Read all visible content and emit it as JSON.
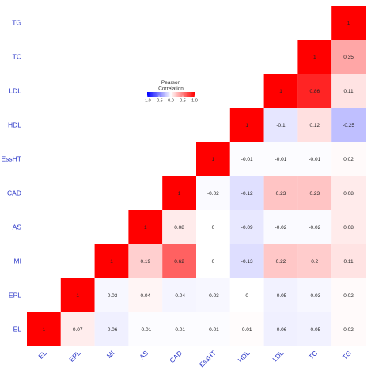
{
  "chart_data": {
    "type": "heatmap",
    "title": "",
    "xlabel": "",
    "ylabel": "",
    "x_categories": [
      "EL",
      "EPL",
      "MI",
      "AS",
      "CAD",
      "EssHT",
      "HDL",
      "LDL",
      "TC",
      "TG"
    ],
    "y_categories_bottom_to_top": [
      "EL",
      "EPL",
      "MI",
      "AS",
      "CAD",
      "EssHT",
      "HDL",
      "LDL",
      "TC",
      "TG"
    ],
    "cells": [
      {
        "row": "EL",
        "col": "EL",
        "value": 1,
        "label": "1"
      },
      {
        "row": "EL",
        "col": "EPL",
        "value": 0.07,
        "label": "0.07"
      },
      {
        "row": "EL",
        "col": "MI",
        "value": -0.06,
        "label": "-0.06"
      },
      {
        "row": "EL",
        "col": "AS",
        "value": -0.01,
        "label": "-0.01"
      },
      {
        "row": "EL",
        "col": "CAD",
        "value": -0.01,
        "label": "-0.01"
      },
      {
        "row": "EL",
        "col": "EssHT",
        "value": -0.01,
        "label": "-0.01"
      },
      {
        "row": "EL",
        "col": "HDL",
        "value": 0.01,
        "label": "0.01"
      },
      {
        "row": "EL",
        "col": "LDL",
        "value": -0.06,
        "label": "-0.06"
      },
      {
        "row": "EL",
        "col": "TC",
        "value": -0.05,
        "label": "-0.05"
      },
      {
        "row": "EL",
        "col": "TG",
        "value": 0.02,
        "label": "0.02"
      },
      {
        "row": "EPL",
        "col": "EPL",
        "value": 1,
        "label": "1"
      },
      {
        "row": "EPL",
        "col": "MI",
        "value": -0.03,
        "label": "-0.03"
      },
      {
        "row": "EPL",
        "col": "AS",
        "value": 0.04,
        "label": "0.04"
      },
      {
        "row": "EPL",
        "col": "CAD",
        "value": -0.04,
        "label": "-0.04"
      },
      {
        "row": "EPL",
        "col": "EssHT",
        "value": -0.03,
        "label": "-0.03"
      },
      {
        "row": "EPL",
        "col": "HDL",
        "value": 0,
        "label": "0"
      },
      {
        "row": "EPL",
        "col": "LDL",
        "value": -0.05,
        "label": "-0.05"
      },
      {
        "row": "EPL",
        "col": "TC",
        "value": -0.03,
        "label": "-0.03"
      },
      {
        "row": "EPL",
        "col": "TG",
        "value": 0.02,
        "label": "0.02"
      },
      {
        "row": "MI",
        "col": "MI",
        "value": 1,
        "label": "1"
      },
      {
        "row": "MI",
        "col": "AS",
        "value": 0.19,
        "label": "0.19"
      },
      {
        "row": "MI",
        "col": "CAD",
        "value": 0.62,
        "label": "0.62"
      },
      {
        "row": "MI",
        "col": "EssHT",
        "value": 0,
        "label": "0"
      },
      {
        "row": "MI",
        "col": "HDL",
        "value": -0.13,
        "label": "-0.13"
      },
      {
        "row": "MI",
        "col": "LDL",
        "value": 0.22,
        "label": "0.22"
      },
      {
        "row": "MI",
        "col": "TC",
        "value": 0.2,
        "label": "0.2"
      },
      {
        "row": "MI",
        "col": "TG",
        "value": 0.11,
        "label": "0.11"
      },
      {
        "row": "AS",
        "col": "AS",
        "value": 1,
        "label": "1"
      },
      {
        "row": "AS",
        "col": "CAD",
        "value": 0.08,
        "label": "0.08"
      },
      {
        "row": "AS",
        "col": "EssHT",
        "value": 0,
        "label": "0"
      },
      {
        "row": "AS",
        "col": "HDL",
        "value": -0.09,
        "label": "-0.09"
      },
      {
        "row": "AS",
        "col": "LDL",
        "value": -0.02,
        "label": "-0.02"
      },
      {
        "row": "AS",
        "col": "TC",
        "value": -0.02,
        "label": "-0.02"
      },
      {
        "row": "AS",
        "col": "TG",
        "value": 0.08,
        "label": "0.08"
      },
      {
        "row": "CAD",
        "col": "CAD",
        "value": 1,
        "label": "1"
      },
      {
        "row": "CAD",
        "col": "EssHT",
        "value": -0.02,
        "label": "-0.02"
      },
      {
        "row": "CAD",
        "col": "HDL",
        "value": -0.12,
        "label": "-0.12"
      },
      {
        "row": "CAD",
        "col": "LDL",
        "value": 0.23,
        "label": "0.23"
      },
      {
        "row": "CAD",
        "col": "TC",
        "value": 0.23,
        "label": "0.23"
      },
      {
        "row": "CAD",
        "col": "TG",
        "value": 0.08,
        "label": "0.08"
      },
      {
        "row": "EssHT",
        "col": "EssHT",
        "value": 1,
        "label": "1"
      },
      {
        "row": "EssHT",
        "col": "HDL",
        "value": -0.01,
        "label": "-0.01"
      },
      {
        "row": "EssHT",
        "col": "LDL",
        "value": -0.01,
        "label": "-0.01"
      },
      {
        "row": "EssHT",
        "col": "TC",
        "value": -0.01,
        "label": "-0.01"
      },
      {
        "row": "EssHT",
        "col": "TG",
        "value": 0.02,
        "label": "0.02"
      },
      {
        "row": "HDL",
        "col": "HDL",
        "value": 1,
        "label": "1"
      },
      {
        "row": "HDL",
        "col": "LDL",
        "value": -0.1,
        "label": "-0.1"
      },
      {
        "row": "HDL",
        "col": "TC",
        "value": 0.12,
        "label": "0.12"
      },
      {
        "row": "HDL",
        "col": "TG",
        "value": -0.25,
        "label": "-0.25"
      },
      {
        "row": "LDL",
        "col": "LDL",
        "value": 1,
        "label": "1"
      },
      {
        "row": "LDL",
        "col": "TC",
        "value": 0.86,
        "label": "0.86"
      },
      {
        "row": "LDL",
        "col": "TG",
        "value": 0.11,
        "label": "0.11"
      },
      {
        "row": "TC",
        "col": "TC",
        "value": 1,
        "label": "1"
      },
      {
        "row": "TC",
        "col": "TG",
        "value": 0.35,
        "label": "0.35"
      },
      {
        "row": "TG",
        "col": "TG",
        "value": 1,
        "label": "1"
      }
    ],
    "legend": {
      "title_lines": [
        "Pearson",
        "Correlation"
      ],
      "ticks": [
        -1.0,
        -0.5,
        0.0,
        0.5,
        1.0
      ],
      "tick_labels": [
        "-1.0",
        "-0.5",
        "0.0",
        "0.5",
        "1.0"
      ],
      "range": [
        -1,
        1
      ]
    },
    "colors": {
      "low": "#0000ff",
      "mid": "#ffffff",
      "high": "#ff0000",
      "tick_label": "#2a36c8",
      "cell_text": "#222222"
    }
  }
}
